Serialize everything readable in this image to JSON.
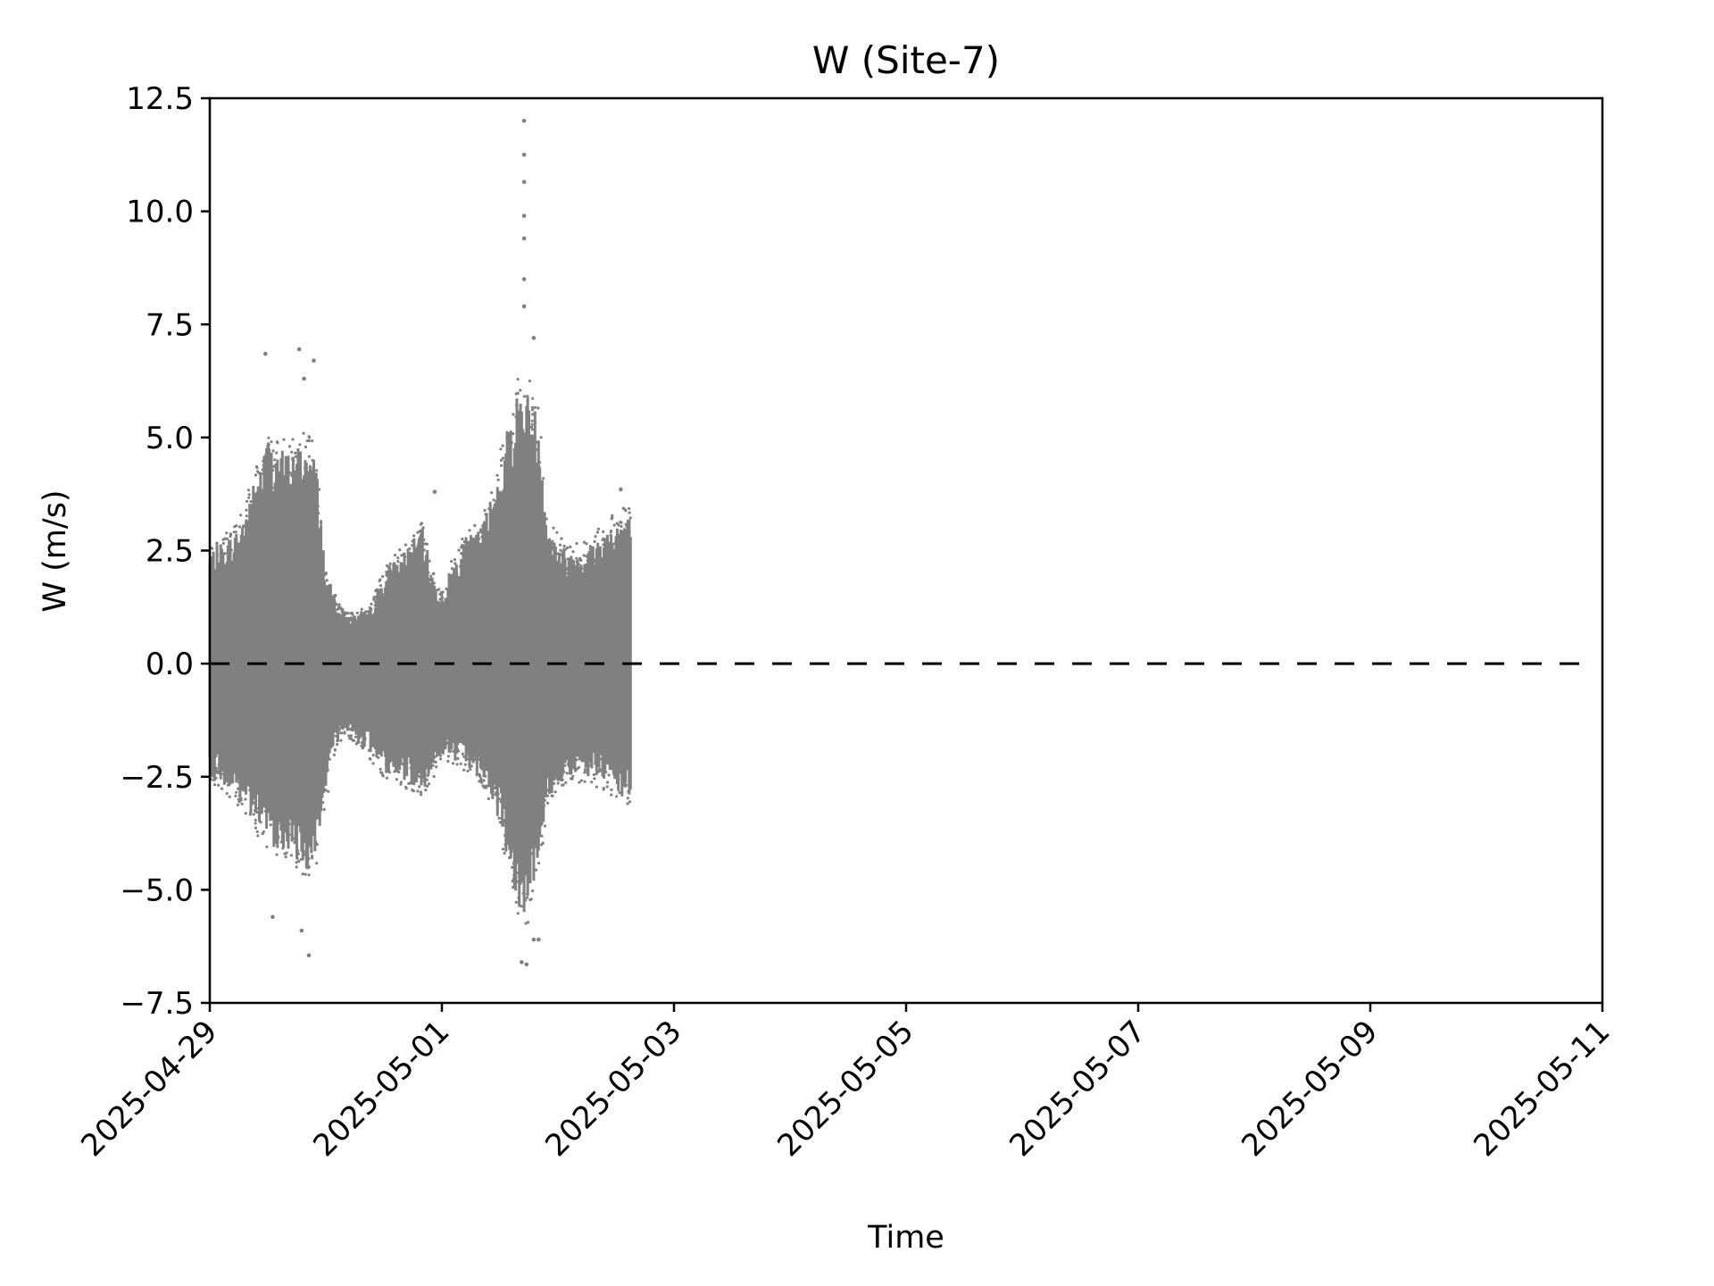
{
  "chart_data": {
    "type": "scatter",
    "title": "W (Site-7)",
    "xlabel": "Time",
    "ylabel": "W (m/s)",
    "x_axis_type": "date",
    "xlim": [
      "2025-04-29",
      "2025-05-11"
    ],
    "ylim": [
      -7.5,
      12.5
    ],
    "y_ticks": [
      -7.5,
      -5.0,
      -2.5,
      0.0,
      2.5,
      5.0,
      7.5,
      10.0,
      12.5
    ],
    "y_tick_labels": [
      "−7.5",
      "−5.0",
      "−2.5",
      "0.0",
      "2.5",
      "5.0",
      "7.5",
      "10.0",
      "12.5"
    ],
    "x_ticks": [
      "2025-04-29",
      "2025-05-01",
      "2025-05-03",
      "2025-05-05",
      "2025-05-07",
      "2025-05-09",
      "2025-05-11"
    ],
    "x_tick_labels": [
      "2025-04-29",
      "2025-05-01",
      "2025-05-03",
      "2025-05-05",
      "2025-05-07",
      "2025-05-09",
      "2025-05-11"
    ],
    "x_tick_rotation_deg": 45,
    "grid": false,
    "legend": "none",
    "series": [
      {
        "color": "#808080",
        "marker": "dot",
        "data_start": "2025-04-29T00:00",
        "data_end": "2025-05-02T15:00",
        "envelope": [
          {
            "t": "2025-04-29T00:00",
            "min": -2.5,
            "max": 2.5
          },
          {
            "t": "2025-04-29T06:00",
            "min": -3.0,
            "max": 3.0
          },
          {
            "t": "2025-04-29T09:00",
            "min": -3.5,
            "max": 4.0
          },
          {
            "t": "2025-04-29T12:00",
            "min": -4.0,
            "max": 5.0
          },
          {
            "t": "2025-04-29T16:00",
            "min": -4.2,
            "max": 4.7
          },
          {
            "t": "2025-04-29T20:00",
            "min": -4.6,
            "max": 5.0
          },
          {
            "t": "2025-04-29T22:00",
            "min": -4.3,
            "max": 4.5
          },
          {
            "t": "2025-04-30T00:00",
            "min": -3.0,
            "max": 2.0
          },
          {
            "t": "2025-04-30T02:00",
            "min": -1.8,
            "max": 1.5
          },
          {
            "t": "2025-04-30T04:00",
            "min": -1.5,
            "max": 1.1
          },
          {
            "t": "2025-04-30T06:00",
            "min": -1.7,
            "max": 1.1
          },
          {
            "t": "2025-04-30T09:00",
            "min": -2.0,
            "max": 1.2
          },
          {
            "t": "2025-04-30T12:00",
            "min": -2.4,
            "max": 2.0
          },
          {
            "t": "2025-04-30T16:00",
            "min": -2.6,
            "max": 2.5
          },
          {
            "t": "2025-04-30T20:00",
            "min": -2.8,
            "max": 3.0
          },
          {
            "t": "2025-04-30T22:00",
            "min": -2.5,
            "max": 2.0
          },
          {
            "t": "2025-05-01T00:00",
            "min": -2.0,
            "max": 1.5
          },
          {
            "t": "2025-05-01T02:00",
            "min": -2.2,
            "max": 2.2
          },
          {
            "t": "2025-05-01T05:00",
            "min": -2.3,
            "max": 2.8
          },
          {
            "t": "2025-05-01T08:00",
            "min": -2.5,
            "max": 3.0
          },
          {
            "t": "2025-05-01T11:00",
            "min": -3.2,
            "max": 4.0
          },
          {
            "t": "2025-05-01T14:00",
            "min": -4.5,
            "max": 5.5
          },
          {
            "t": "2025-05-01T16:00",
            "min": -5.5,
            "max": 6.2
          },
          {
            "t": "2025-05-01T18:00",
            "min": -5.5,
            "max": 6.0
          },
          {
            "t": "2025-05-01T20:00",
            "min": -4.5,
            "max": 5.5
          },
          {
            "t": "2025-05-01T22:00",
            "min": -3.0,
            "max": 3.0
          },
          {
            "t": "2025-05-02T02:00",
            "min": -2.5,
            "max": 2.5
          },
          {
            "t": "2025-05-02T06:00",
            "min": -2.5,
            "max": 2.6
          },
          {
            "t": "2025-05-02T10:00",
            "min": -2.7,
            "max": 3.0
          },
          {
            "t": "2025-05-02T13:00",
            "min": -3.0,
            "max": 3.3
          },
          {
            "t": "2025-05-02T15:00",
            "min": -3.0,
            "max": 3.3
          }
        ],
        "extremes": [
          {
            "t": "2025-04-29T11:30",
            "w": 6.85
          },
          {
            "t": "2025-04-29T18:30",
            "w": 6.95
          },
          {
            "t": "2025-04-29T21:30",
            "w": 6.7
          },
          {
            "t": "2025-04-29T19:30",
            "w": 6.3
          },
          {
            "t": "2025-04-29T13:00",
            "w": -5.6
          },
          {
            "t": "2025-04-29T19:00",
            "w": -5.9
          },
          {
            "t": "2025-04-29T20:30",
            "w": -6.45
          },
          {
            "t": "2025-04-30T22:30",
            "w": 3.8
          },
          {
            "t": "2025-05-01T17:00",
            "w": 12.0
          },
          {
            "t": "2025-05-01T17:00",
            "w": 11.25
          },
          {
            "t": "2025-05-01T17:00",
            "w": 10.65
          },
          {
            "t": "2025-05-01T17:00",
            "w": 9.9
          },
          {
            "t": "2025-05-01T17:00",
            "w": 9.4
          },
          {
            "t": "2025-05-01T17:00",
            "w": 8.5
          },
          {
            "t": "2025-05-01T17:00",
            "w": 7.9
          },
          {
            "t": "2025-05-01T19:00",
            "w": 7.2
          },
          {
            "t": "2025-05-01T16:30",
            "w": -6.6
          },
          {
            "t": "2025-05-01T17:30",
            "w": -6.65
          },
          {
            "t": "2025-05-01T19:00",
            "w": -6.1
          },
          {
            "t": "2025-05-01T20:00",
            "w": -6.1
          },
          {
            "t": "2025-05-02T13:00",
            "w": 3.85
          }
        ]
      }
    ],
    "reference_line": {
      "y": 0.0,
      "style": "dashed",
      "color": "#000000",
      "x_end": "2025-05-11"
    }
  }
}
